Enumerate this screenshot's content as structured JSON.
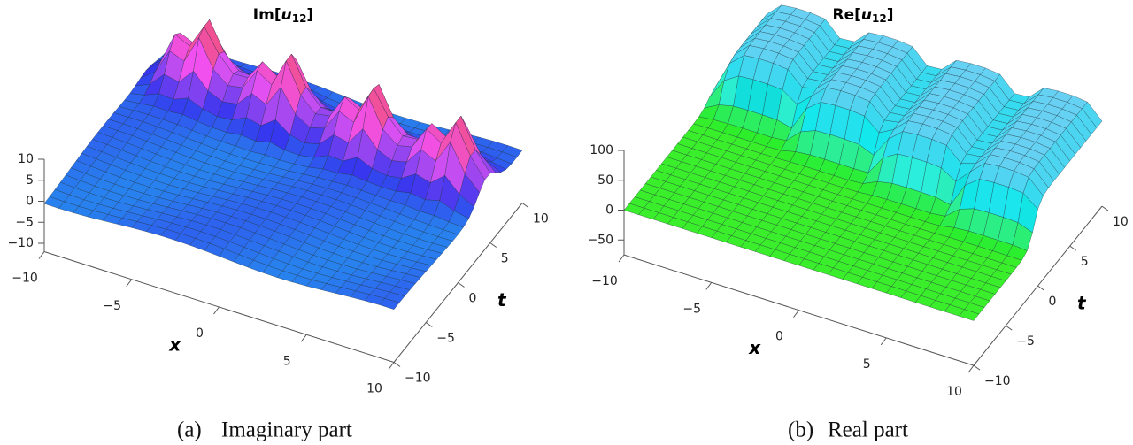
{
  "panels": [
    {
      "title": {
        "prefix": "Im[",
        "var": "u",
        "sub": "12",
        "suffix": "]"
      },
      "z_ticks": [
        "10",
        "5",
        "0",
        "−5",
        "−10"
      ],
      "x_ticks": [
        "−10",
        "−5",
        "0",
        "5",
        "10"
      ],
      "t_ticks": [
        "−10",
        "−5",
        "0",
        "5",
        "10"
      ],
      "x_label": "x",
      "t_label": "t",
      "caption_tag": "(a)",
      "caption": "Imaginary part"
    },
    {
      "title": {
        "prefix": "Re[",
        "var": "u",
        "sub": "12",
        "suffix": "]"
      },
      "z_ticks": [
        "100",
        "50",
        "0",
        "−50"
      ],
      "x_ticks": [
        "−10",
        "−5",
        "0",
        "5",
        "10"
      ],
      "t_ticks": [
        "−10",
        "−5",
        "0",
        "5",
        "10"
      ],
      "x_label": "x",
      "t_label": "t",
      "caption_tag": "(b)",
      "caption": "Real part"
    }
  ]
}
